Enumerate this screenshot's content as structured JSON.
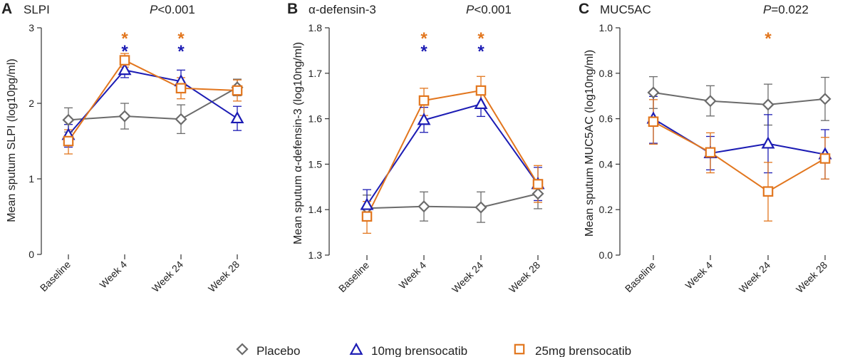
{
  "legend": [
    {
      "label": "Placebo",
      "color": "#6b6b6b",
      "marker": "diamond"
    },
    {
      "label": "10mg brensocatib",
      "color": "#1c1cb4",
      "marker": "triangle"
    },
    {
      "label": "25mg brensocatib",
      "color": "#e2761e",
      "marker": "square"
    }
  ],
  "chart_data": [
    {
      "type": "line",
      "letter": "A",
      "title": "SLPI",
      "pvalue": {
        "italic": "P",
        "rest": "<0.001"
      },
      "xlabel": "",
      "ylabel": "Mean sputum SLPI (log10pg/ml)",
      "categories": [
        "Baseline",
        "Week 4",
        "Week 24",
        "Week 28"
      ],
      "ylim": [
        0,
        3
      ],
      "yticks": [
        0,
        1,
        2,
        3
      ],
      "ytick_labels": [
        "0",
        "1",
        "2",
        "3"
      ],
      "series": [
        {
          "name": "Placebo",
          "color": "#6b6b6b",
          "marker": "diamond",
          "values": [
            1.78,
            1.83,
            1.79,
            2.21
          ],
          "lower": [
            1.62,
            1.66,
            1.6,
            2.1
          ],
          "upper": [
            1.94,
            2.0,
            1.98,
            2.32
          ]
        },
        {
          "name": "10mg brensocatib",
          "color": "#1c1cb4",
          "marker": "triangle",
          "values": [
            1.58,
            2.44,
            2.29,
            1.8
          ],
          "lower": [
            1.42,
            2.34,
            2.14,
            1.64
          ],
          "upper": [
            1.72,
            2.56,
            2.44,
            1.96
          ]
        },
        {
          "name": "25mg brensocatib",
          "color": "#e2761e",
          "marker": "square",
          "values": [
            1.5,
            2.57,
            2.2,
            2.17
          ],
          "lower": [
            1.33,
            2.48,
            2.06,
            2.03
          ],
          "upper": [
            1.65,
            2.66,
            2.34,
            2.31
          ]
        }
      ],
      "significance": [
        {
          "category": "Week 4",
          "marks": [
            {
              "symbol": "*",
              "color": "#e2761e"
            },
            {
              "symbol": "*",
              "color": "#1c1cb4"
            }
          ]
        },
        {
          "category": "Week 24",
          "marks": [
            {
              "symbol": "*",
              "color": "#e2761e"
            },
            {
              "symbol": "*",
              "color": "#1c1cb4"
            }
          ]
        }
      ]
    },
    {
      "type": "line",
      "letter": "B",
      "title": "α-defensin-3",
      "pvalue": {
        "italic": "P",
        "rest": "<0.001"
      },
      "xlabel": "",
      "ylabel": "Mean sputum α-defensin-3 (log10ng/ml)",
      "categories": [
        "Baseline",
        "Week 4",
        "Week 24",
        "Week 28"
      ],
      "ylim": [
        1.3,
        1.8
      ],
      "yticks": [
        1.3,
        1.4,
        1.5,
        1.6,
        1.7,
        1.8
      ],
      "ytick_labels": [
        "1.3",
        "1.4",
        "1.5",
        "1.6",
        "1.7",
        "1.8"
      ],
      "series": [
        {
          "name": "Placebo",
          "color": "#6b6b6b",
          "marker": "diamond",
          "values": [
            1.403,
            1.407,
            1.405,
            1.435
          ],
          "lower": [
            1.375,
            1.375,
            1.372,
            1.402
          ],
          "upper": [
            1.432,
            1.439,
            1.439,
            1.466
          ]
        },
        {
          "name": "10mg brensocatib",
          "color": "#1c1cb4",
          "marker": "triangle",
          "values": [
            1.41,
            1.597,
            1.632,
            1.456
          ],
          "lower": [
            1.378,
            1.57,
            1.605,
            1.42
          ],
          "upper": [
            1.444,
            1.625,
            1.66,
            1.493
          ]
        },
        {
          "name": "25mg brensocatib",
          "color": "#e2761e",
          "marker": "square",
          "values": [
            1.385,
            1.64,
            1.662,
            1.456
          ],
          "lower": [
            1.348,
            1.607,
            1.628,
            1.416
          ],
          "upper": [
            1.418,
            1.667,
            1.693,
            1.497
          ]
        }
      ],
      "significance": [
        {
          "category": "Week 4",
          "marks": [
            {
              "symbol": "*",
              "color": "#e2761e"
            },
            {
              "symbol": "*",
              "color": "#1c1cb4"
            }
          ]
        },
        {
          "category": "Week 24",
          "marks": [
            {
              "symbol": "*",
              "color": "#e2761e"
            },
            {
              "symbol": "*",
              "color": "#1c1cb4"
            }
          ]
        }
      ]
    },
    {
      "type": "line",
      "letter": "C",
      "title": "MUC5AC",
      "pvalue": {
        "italic": "P",
        "rest": "=0.022"
      },
      "xlabel": "",
      "ylabel": "Mean sputum MUC5AC (log10ng/ml)",
      "categories": [
        "Baseline",
        "Week 4",
        "Week 24",
        "Week 28"
      ],
      "ylim": [
        0,
        1
      ],
      "yticks": [
        0,
        0.2,
        0.4,
        0.6,
        0.8,
        1.0
      ],
      "ytick_labels": [
        "0.0",
        "0.2",
        "0.4",
        "0.6",
        "0.8",
        "1.0"
      ],
      "series": [
        {
          "name": "Placebo",
          "color": "#6b6b6b",
          "marker": "diamond",
          "values": [
            0.715,
            0.678,
            0.662,
            0.687
          ],
          "lower": [
            0.645,
            0.612,
            0.572,
            0.592
          ],
          "upper": [
            0.785,
            0.745,
            0.752,
            0.782
          ]
        },
        {
          "name": "10mg brensocatib",
          "color": "#1c1cb4",
          "marker": "triangle",
          "values": [
            0.6,
            0.448,
            0.49,
            0.443
          ],
          "lower": [
            0.492,
            0.375,
            0.362,
            0.335
          ],
          "upper": [
            0.698,
            0.522,
            0.618,
            0.552
          ]
        },
        {
          "name": "25mg brensocatib",
          "color": "#e2761e",
          "marker": "square",
          "values": [
            0.587,
            0.452,
            0.28,
            0.425
          ],
          "lower": [
            0.488,
            0.362,
            0.15,
            0.335
          ],
          "upper": [
            0.684,
            0.538,
            0.408,
            0.518
          ]
        }
      ],
      "significance": [
        {
          "category": "Week 24",
          "marks": [
            {
              "symbol": "*",
              "color": "#e2761e"
            }
          ]
        }
      ]
    }
  ]
}
